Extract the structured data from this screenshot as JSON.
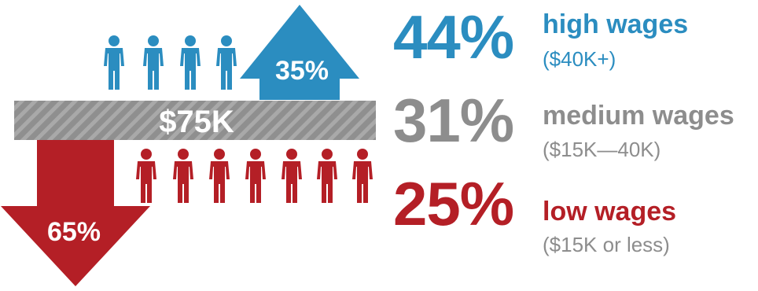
{
  "bar": {
    "label": "$75K"
  },
  "up_arrow": {
    "label": "35%"
  },
  "down_arrow": {
    "label": "65%"
  },
  "figures": {
    "above_count": 4,
    "below_count": 7
  },
  "tiers": {
    "high": {
      "percent": "44%",
      "label": "high wages",
      "range": "($40K+)",
      "color": "#2b8dc0"
    },
    "medium": {
      "percent": "31%",
      "label": "medium wages",
      "range": "($15K—40K)",
      "color": "#8d8d8d"
    },
    "low": {
      "percent": "25%",
      "label": "low wages",
      "range": "($15K or less)",
      "color": "#b41f26"
    }
  }
}
